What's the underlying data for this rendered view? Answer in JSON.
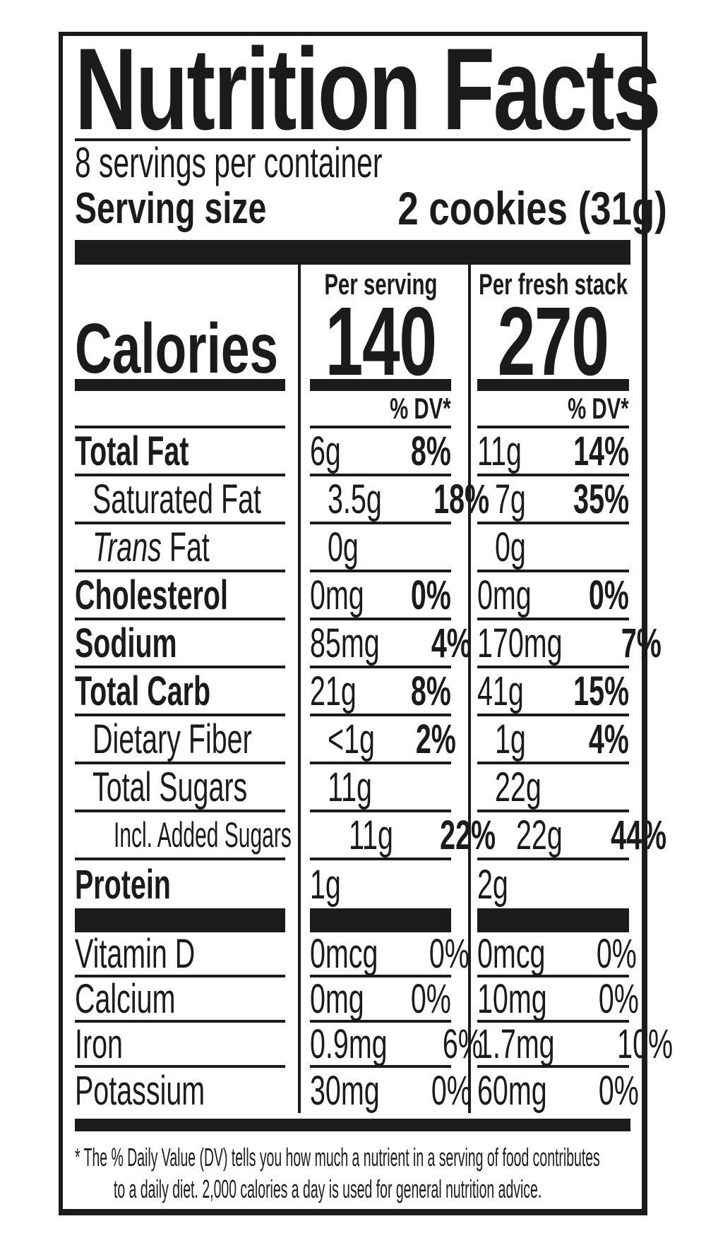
{
  "title": "Nutrition Facts",
  "servings_per_container": "8 servings per container",
  "serving_size": {
    "label": "Serving size",
    "value": "2 cookies (31g)"
  },
  "calories": {
    "label": "Calories",
    "per_serving": {
      "header": "Per serving",
      "value": "140"
    },
    "per_fresh_stack": {
      "header": "Per fresh stack",
      "value": "270"
    }
  },
  "dv_header": "% DV*",
  "nutrients": [
    {
      "label": "Total Fat",
      "serving": {
        "amount": "6g",
        "dv": "8%"
      },
      "stack": {
        "amount": "11g",
        "dv": "14%"
      }
    },
    {
      "label": "Saturated Fat",
      "serving": {
        "amount": "3.5g",
        "dv": "18%"
      },
      "stack": {
        "amount": "7g",
        "dv": "35%"
      }
    },
    {
      "label_italic": "Trans",
      "label_rest": "Fat",
      "serving": {
        "amount": "0g",
        "dv": ""
      },
      "stack": {
        "amount": "0g",
        "dv": ""
      }
    },
    {
      "label": "Cholesterol",
      "serving": {
        "amount": "0mg",
        "dv": "0%"
      },
      "stack": {
        "amount": "0mg",
        "dv": "0%"
      }
    },
    {
      "label": "Sodium",
      "serving": {
        "amount": "85mg",
        "dv": "4%"
      },
      "stack": {
        "amount": "170mg",
        "dv": "7%"
      }
    },
    {
      "label": "Total Carb",
      "serving": {
        "amount": "21g",
        "dv": "8%"
      },
      "stack": {
        "amount": "41g",
        "dv": "15%"
      }
    },
    {
      "label": "Dietary Fiber",
      "serving": {
        "amount": "<1g",
        "dv": "2%"
      },
      "stack": {
        "amount": "1g",
        "dv": "4%"
      }
    },
    {
      "label": "Total Sugars",
      "serving": {
        "amount": "11g",
        "dv": ""
      },
      "stack": {
        "amount": "22g",
        "dv": ""
      }
    },
    {
      "label": "Incl. Added Sugars",
      "serving": {
        "amount": "11g",
        "dv": "22%"
      },
      "stack": {
        "amount": "22g",
        "dv": "44%"
      }
    },
    {
      "label": "Protein",
      "serving": {
        "amount": "1g",
        "dv": ""
      },
      "stack": {
        "amount": "2g",
        "dv": ""
      }
    }
  ],
  "vitamins": [
    {
      "label": "Vitamin D",
      "serving": {
        "amount": "0mcg",
        "dv": "0%"
      },
      "stack": {
        "amount": "0mcg",
        "dv": "0%"
      }
    },
    {
      "label": "Calcium",
      "serving": {
        "amount": "0mg",
        "dv": "0%"
      },
      "stack": {
        "amount": "10mg",
        "dv": "0%"
      }
    },
    {
      "label": "Iron",
      "serving": {
        "amount": "0.9mg",
        "dv": "6%"
      },
      "stack": {
        "amount": "1.7mg",
        "dv": "10%"
      }
    },
    {
      "label": "Potassium",
      "serving": {
        "amount": "30mg",
        "dv": "0%"
      },
      "stack": {
        "amount": "60mg",
        "dv": "0%"
      }
    }
  ],
  "footnote": {
    "line1": "* The % Daily Value (DV) tells you how much a nutrient in a serving of food contributes",
    "line2": "to a daily diet. 2,000 calories a day is used for general nutrition advice."
  },
  "colors": {
    "ink": "#1b1b1b",
    "background": "#ffffff"
  }
}
